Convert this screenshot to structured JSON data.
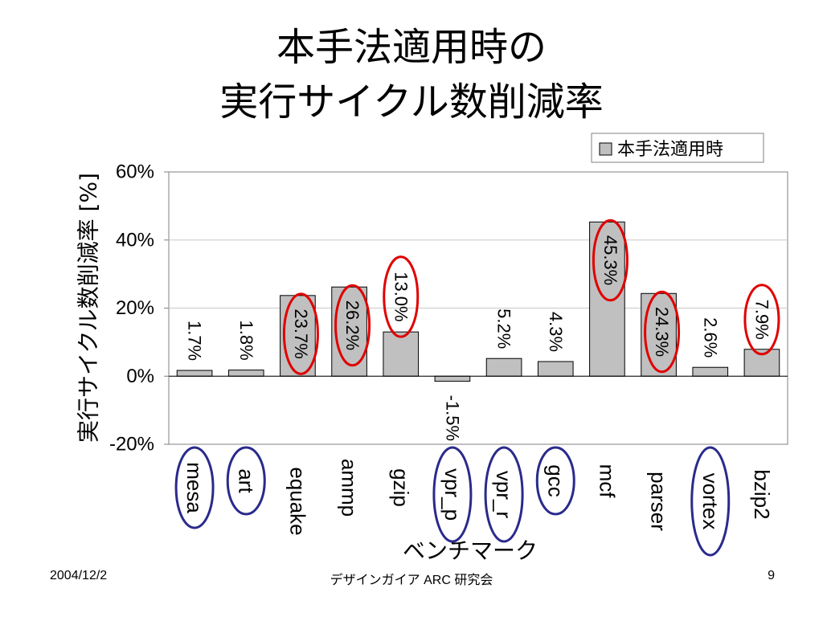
{
  "slide": {
    "title_line1": "本手法適用時の",
    "title_line2": "実行サイクル数削減率"
  },
  "footer": {
    "date": "2004/12/2",
    "organization": "デザインガイア ARC 研究会",
    "page": "9"
  },
  "chart_data": {
    "type": "bar",
    "categories": [
      "mesa",
      "art",
      "equake",
      "ammp",
      "gzip",
      "vpr_p",
      "vpr_r",
      "gcc",
      "mcf",
      "parser",
      "vortex",
      "bzip2"
    ],
    "series": [
      {
        "name": "本手法適用時",
        "values": [
          1.7,
          1.8,
          23.7,
          26.2,
          13.0,
          -1.5,
          5.2,
          4.3,
          45.3,
          24.3,
          2.6,
          7.9
        ]
      }
    ],
    "data_labels": [
      "1.7%",
      "1.8%",
      "23.7%",
      "26.2%",
      "13.0%",
      "-1.5%",
      "5.2%",
      "4.3%",
      "45.3%",
      "24.3%",
      "2.6%",
      "7.9%"
    ],
    "ylim": [
      -20,
      60
    ],
    "yticks": [
      "60%",
      "40%",
      "20%",
      "0%",
      "-20%"
    ],
    "ylabel": "実行サイクル数削減率 [%]",
    "xlabel": "ベンチマーク",
    "legend_position": "top-right",
    "grid": true,
    "bar_color": "#c0c0c0",
    "highlighted_values": [
      "23.7%",
      "26.2%",
      "13.0%",
      "45.3%",
      "24.3%",
      "7.9%"
    ],
    "highlighted_benchmarks": [
      "mesa",
      "art",
      "vpr_p",
      "vpr_r",
      "gcc",
      "vortex"
    ],
    "highlight_value_color": "#e00000",
    "highlight_benchmark_color": "#2a2a8c"
  }
}
